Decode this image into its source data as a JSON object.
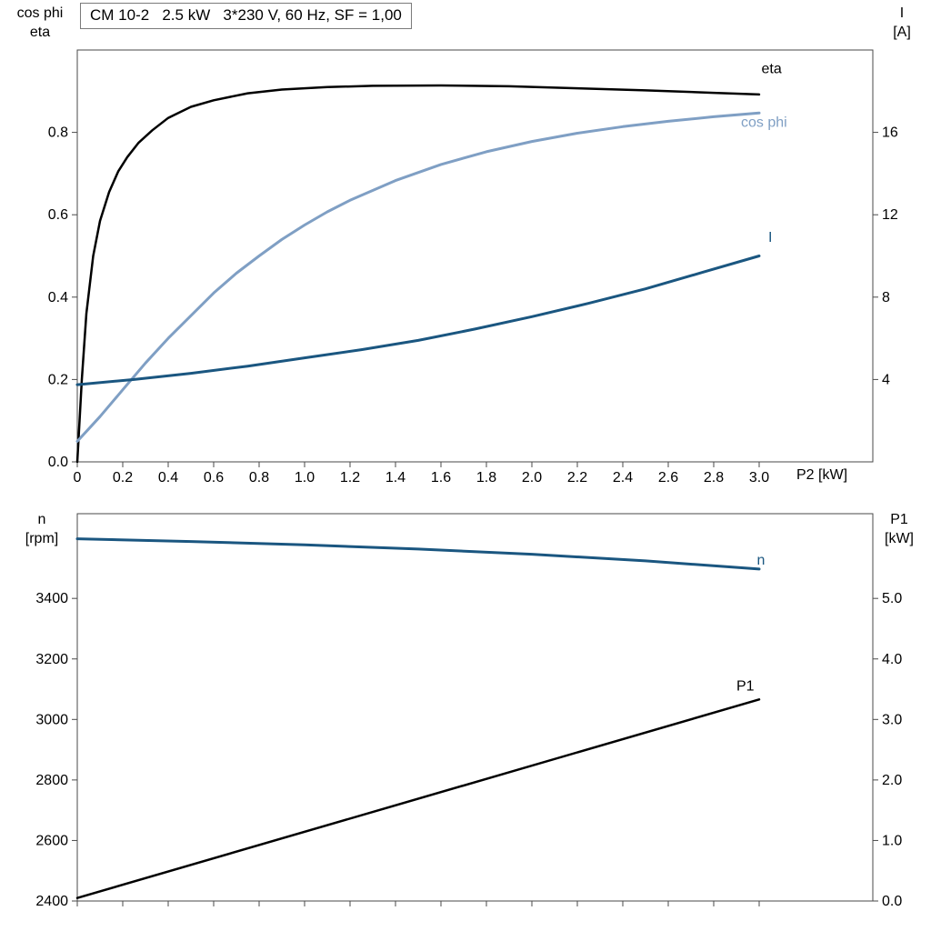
{
  "colors": {
    "frame": "#4a4a4a",
    "text": "#000000",
    "black": "#000000",
    "dark_blue": "#1a5680",
    "light_blue": "#7f9fc4"
  },
  "chart_data": [
    {
      "type": "line",
      "title": "CM 10-2   2.5 kW   3*230 V, 60 Hz, SF = 1,00",
      "xlabel": "P2 [kW]",
      "ylabel_left_lines": [
        "cos phi",
        "eta"
      ],
      "ylabel_right_lines": [
        "I",
        "[A]"
      ],
      "xlim": [
        0,
        3.5
      ],
      "ylim_left": [
        0,
        1.0
      ],
      "ylim_right": [
        0,
        20
      ],
      "grid": false,
      "legend": "inline-curve-labels",
      "x_ticks": [
        0,
        0.2,
        0.4,
        0.6,
        0.8,
        1.0,
        1.2,
        1.4,
        1.6,
        1.8,
        2.0,
        2.2,
        2.4,
        2.6,
        2.8,
        3.0
      ],
      "x_tick_labels": [
        "0",
        "0.2",
        "0.4",
        "0.6",
        "0.8",
        "1.0",
        "1.2",
        "1.4",
        "1.6",
        "1.8",
        "2.0",
        "2.2",
        "2.4",
        "2.6",
        "2.8",
        "3.0"
      ],
      "y_ticks_left": [
        0,
        0.2,
        0.4,
        0.6,
        0.8
      ],
      "y_tick_labels_left": [
        "0.0",
        "0.2",
        "0.4",
        "0.6",
        "0.8"
      ],
      "y_ticks_right": [
        4,
        8,
        12,
        16
      ],
      "y_tick_labels_right": [
        "4",
        "8",
        "12",
        "16"
      ],
      "series": [
        {
          "id": "eta",
          "name": "eta",
          "axis": "left",
          "color": "#000000",
          "width": 2.5,
          "x": [
            0,
            0.02,
            0.04,
            0.07,
            0.1,
            0.14,
            0.18,
            0.22,
            0.27,
            0.33,
            0.4,
            0.5,
            0.6,
            0.75,
            0.9,
            1.1,
            1.3,
            1.6,
            1.9,
            2.2,
            2.5,
            2.8,
            3.0
          ],
          "y": [
            0,
            0.2,
            0.36,
            0.5,
            0.585,
            0.655,
            0.705,
            0.74,
            0.775,
            0.805,
            0.835,
            0.862,
            0.878,
            0.895,
            0.904,
            0.91,
            0.913,
            0.914,
            0.912,
            0.907,
            0.902,
            0.896,
            0.892
          ],
          "label": {
            "text": "eta",
            "x": 3.01,
            "y": 0.955,
            "anchor": "start"
          }
        },
        {
          "id": "cos-phi",
          "name": "cos phi",
          "axis": "left",
          "color": "#7f9fc4",
          "width": 3,
          "x": [
            0,
            0.05,
            0.1,
            0.2,
            0.3,
            0.4,
            0.5,
            0.6,
            0.7,
            0.8,
            0.9,
            1.0,
            1.1,
            1.2,
            1.4,
            1.6,
            1.8,
            2.0,
            2.2,
            2.4,
            2.6,
            2.8,
            3.0
          ],
          "y": [
            0.05,
            0.08,
            0.11,
            0.175,
            0.24,
            0.3,
            0.355,
            0.41,
            0.458,
            0.5,
            0.54,
            0.575,
            0.607,
            0.635,
            0.683,
            0.722,
            0.753,
            0.778,
            0.798,
            0.814,
            0.827,
            0.838,
            0.847
          ],
          "label": {
            "text": "cos phi",
            "x": 2.92,
            "y": 0.825,
            "anchor": "start"
          }
        },
        {
          "id": "current",
          "name": "I",
          "axis": "right",
          "color": "#1a5680",
          "width": 3,
          "x": [
            0,
            0.25,
            0.5,
            0.75,
            1.0,
            1.25,
            1.5,
            1.75,
            2.0,
            2.25,
            2.5,
            2.75,
            3.0
          ],
          "y": [
            3.75,
            4.0,
            4.3,
            4.65,
            5.05,
            5.45,
            5.9,
            6.45,
            7.05,
            7.7,
            8.4,
            9.2,
            10.0
          ],
          "label": {
            "text": "I",
            "x": 3.04,
            "y": 10.9,
            "anchor": "start"
          }
        }
      ]
    },
    {
      "type": "line",
      "title": "",
      "xlabel": "",
      "ylabel_left_lines": [
        "n",
        "[rpm]"
      ],
      "ylabel_right_lines": [
        "P1",
        "[kW]"
      ],
      "xlim": [
        0,
        3.5
      ],
      "ylim_left": [
        2400,
        3680
      ],
      "ylim_right": [
        0,
        6.4
      ],
      "grid": false,
      "legend": "inline-curve-labels",
      "x_ticks": [
        0,
        0.2,
        0.4,
        0.6,
        0.8,
        1.0,
        1.2,
        1.4,
        1.6,
        1.8,
        2.0,
        2.2,
        2.4,
        2.6,
        2.8,
        3.0
      ],
      "x_tick_labels": [],
      "y_ticks_left": [
        2400,
        2600,
        2800,
        3000,
        3200,
        3400
      ],
      "y_tick_labels_left": [
        "2400",
        "2600",
        "2800",
        "3000",
        "3200",
        "3400"
      ],
      "y_ticks_right": [
        0,
        1,
        2,
        3,
        4,
        5
      ],
      "y_tick_labels_right": [
        "0.0",
        "1.0",
        "2.0",
        "3.0",
        "4.0",
        "5.0"
      ],
      "series": [
        {
          "id": "speed",
          "name": "n",
          "axis": "left",
          "color": "#1a5680",
          "width": 3,
          "x": [
            0,
            0.5,
            1.0,
            1.5,
            2.0,
            2.5,
            3.0
          ],
          "y": [
            3597,
            3588,
            3577,
            3563,
            3546,
            3524,
            3497
          ],
          "label": {
            "text": "n",
            "x": 2.99,
            "y": 3527,
            "anchor": "start"
          }
        },
        {
          "id": "p1",
          "name": "P1",
          "axis": "right",
          "color": "#000000",
          "width": 2.5,
          "x": [
            0,
            3.0
          ],
          "y": [
            0.05,
            3.33
          ],
          "label": {
            "text": "P1",
            "x": 2.9,
            "y": 3.55,
            "anchor": "start"
          }
        }
      ]
    }
  ]
}
